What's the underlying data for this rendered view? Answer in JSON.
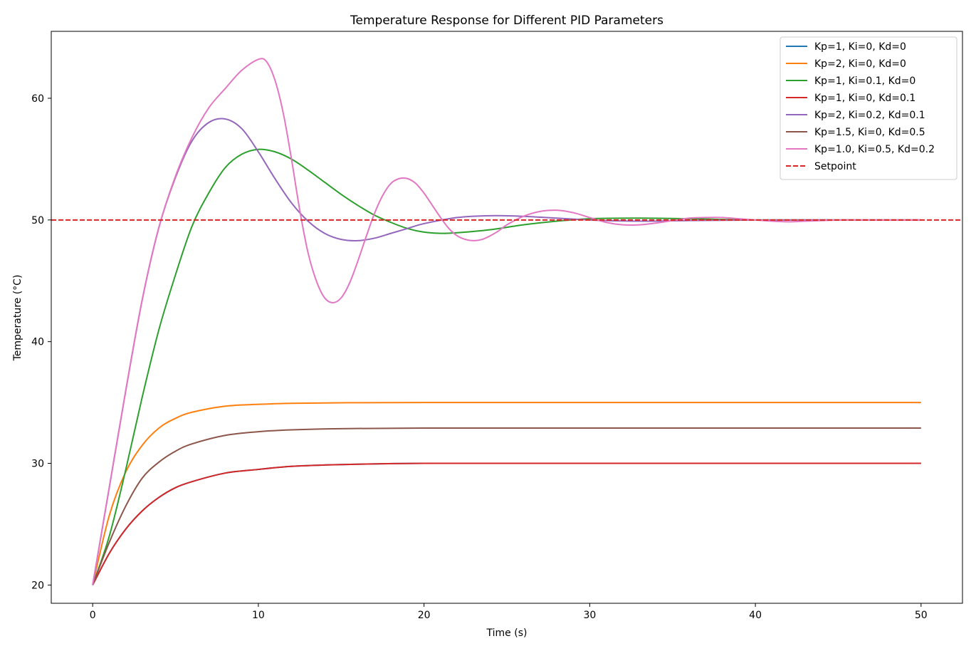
{
  "chart_data": {
    "type": "line",
    "title": "Temperature Response for Different PID Parameters",
    "xlabel": "Time (s)",
    "ylabel": "Temperature (°C)",
    "xlim": [
      -2.5,
      52.5
    ],
    "ylim": [
      18.5,
      65.5
    ],
    "xticks": [
      0,
      10,
      20,
      30,
      40,
      50
    ],
    "yticks": [
      20,
      30,
      40,
      50,
      60
    ],
    "grid": false,
    "legend_position": "top-right",
    "setpoint": {
      "name": "Setpoint",
      "value": 50,
      "color": "#d62728",
      "style": "dashed"
    },
    "series": [
      {
        "name": "Kp=1, Ki=0, Kd=0",
        "color": "#1f77b4",
        "x": [
          0,
          1,
          2,
          3,
          4,
          5,
          6,
          8,
          10,
          12,
          15,
          20,
          30,
          40,
          50
        ],
        "y": [
          20,
          22.6,
          24.6,
          26.1,
          27.2,
          28.0,
          28.5,
          29.2,
          29.5,
          29.75,
          29.9,
          30.0,
          30.0,
          30.0,
          30.0
        ]
      },
      {
        "name": "Kp=2, Ki=0, Kd=0",
        "color": "#ff7f0e",
        "x": [
          0,
          1,
          2,
          3,
          4,
          5,
          6,
          8,
          10,
          12,
          15,
          20,
          30,
          40,
          50
        ],
        "y": [
          20,
          25.7,
          29.3,
          31.5,
          32.9,
          33.7,
          34.2,
          34.7,
          34.85,
          34.93,
          34.98,
          35.0,
          35.0,
          35.0,
          35.0
        ]
      },
      {
        "name": "Kp=1, Ki=0.1, Kd=0",
        "color": "#2ca02c",
        "x": [
          0,
          1,
          2,
          3,
          4,
          5,
          6,
          7,
          8,
          9,
          10,
          11,
          12,
          13,
          14,
          15,
          16,
          17,
          18,
          19,
          20,
          21,
          22,
          24,
          26,
          28,
          30,
          33,
          36,
          40,
          45,
          50
        ],
        "y": [
          20,
          24,
          29.5,
          35.5,
          41,
          45.5,
          49.5,
          52.2,
          54.3,
          55.4,
          55.8,
          55.6,
          55.0,
          54.1,
          53.1,
          52.1,
          51.2,
          50.4,
          49.8,
          49.3,
          49.0,
          48.9,
          48.95,
          49.2,
          49.6,
          49.9,
          50.1,
          50.15,
          50.1,
          50.0,
          50.0,
          50.0
        ]
      },
      {
        "name": "Kp=1, Ki=0, Kd=0.1",
        "color": "#d62728",
        "x": [
          0,
          1,
          2,
          3,
          4,
          5,
          6,
          8,
          10,
          12,
          15,
          20,
          30,
          40,
          50
        ],
        "y": [
          20,
          22.6,
          24.6,
          26.1,
          27.2,
          28.0,
          28.5,
          29.2,
          29.5,
          29.75,
          29.9,
          30.0,
          30.0,
          30.0,
          30.0
        ]
      },
      {
        "name": "Kp=2, Ki=0.2, Kd=0.1",
        "color": "#9467bd",
        "x": [
          0,
          1,
          2,
          3,
          4,
          5,
          6,
          7,
          8,
          9,
          10,
          11,
          12,
          13,
          14,
          15,
          16,
          17,
          18,
          19,
          20,
          22,
          24,
          26,
          28,
          30,
          33,
          36,
          40,
          45,
          50
        ],
        "y": [
          20,
          28,
          36,
          43.5,
          49.4,
          53.5,
          56.5,
          58,
          58.3,
          57.5,
          55.6,
          53.4,
          51.4,
          49.9,
          48.9,
          48.4,
          48.3,
          48.5,
          48.9,
          49.3,
          49.7,
          50.2,
          50.35,
          50.3,
          50.15,
          50.0,
          49.9,
          49.95,
          50.0,
          50.0,
          50.0
        ]
      },
      {
        "name": "Kp=1.5, Ki=0, Kd=0.5",
        "color": "#8c564b",
        "x": [
          0,
          1,
          2,
          3,
          4,
          5,
          6,
          8,
          10,
          12,
          15,
          20,
          30,
          40,
          50
        ],
        "y": [
          20,
          23.5,
          26.5,
          28.8,
          30.1,
          31.0,
          31.6,
          32.3,
          32.6,
          32.75,
          32.85,
          32.9,
          32.9,
          32.9,
          32.9
        ]
      },
      {
        "name": "Kp=1.0, Ki=0.5, Kd=0.2",
        "color": "#e377c2",
        "x": [
          0,
          1,
          2,
          3,
          4,
          5,
          6,
          7,
          8,
          9,
          10,
          10.5,
          11,
          11.5,
          12,
          12.5,
          13,
          13.5,
          14,
          14.5,
          15,
          15.5,
          16,
          16.5,
          17,
          17.5,
          18,
          18.5,
          19,
          19.5,
          20,
          20.5,
          21,
          21.5,
          22,
          22.5,
          23,
          23.5,
          24,
          24.5,
          25,
          26,
          27,
          28,
          29,
          30,
          31,
          32,
          33,
          34,
          35,
          36,
          37,
          38,
          39,
          40,
          41,
          42,
          43,
          44,
          45,
          46,
          48,
          50
        ],
        "y": [
          20,
          28,
          36,
          43.5,
          49.4,
          53.6,
          56.8,
          59.2,
          60.8,
          62.3,
          63.2,
          63.0,
          61.5,
          58.8,
          55.0,
          50.8,
          47.3,
          45.0,
          43.6,
          43.2,
          43.6,
          44.8,
          46.6,
          48.6,
          50.5,
          52.0,
          53.0,
          53.4,
          53.4,
          53.0,
          52.2,
          51.2,
          50.2,
          49.3,
          48.7,
          48.4,
          48.3,
          48.4,
          48.7,
          49.1,
          49.6,
          50.3,
          50.7,
          50.8,
          50.6,
          50.2,
          49.8,
          49.6,
          49.6,
          49.75,
          49.95,
          50.15,
          50.2,
          50.2,
          50.1,
          50.0,
          49.9,
          49.85,
          49.9,
          49.95,
          50.0,
          50.0,
          50.0,
          50.0
        ]
      }
    ]
  }
}
